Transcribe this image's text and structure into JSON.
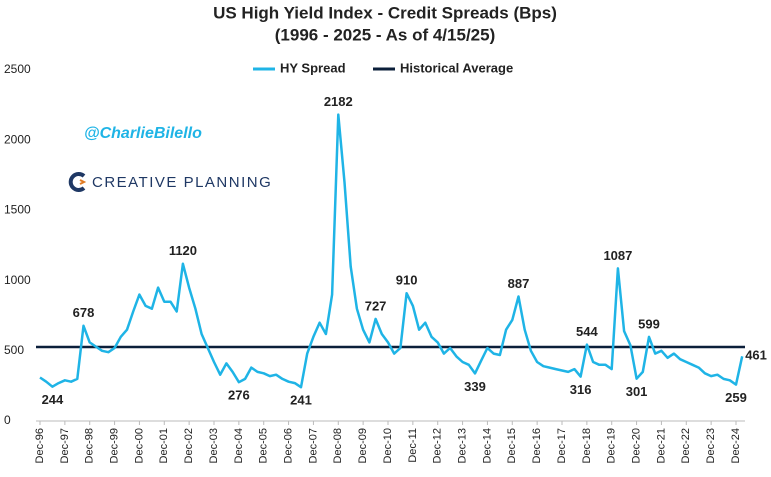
{
  "chart_data": {
    "type": "line",
    "title": "US High Yield Index - Credit Spreads (Bps)",
    "subtitle": "(1996 - 2025 - As of 4/15/25)",
    "watermark": "@CharlieBilello",
    "logo": "CREATIVE PLANNING",
    "categories": [
      "Dec-96",
      null,
      null,
      null,
      "Dec-97",
      null,
      null,
      null,
      "Dec-98",
      null,
      null,
      null,
      "Dec-99",
      null,
      null,
      null,
      "Dec-00",
      null,
      null,
      null,
      "Dec-01",
      null,
      null,
      null,
      "Dec-02",
      null,
      null,
      null,
      "Dec-03",
      null,
      null,
      null,
      "Dec-04",
      null,
      null,
      null,
      "Dec-05",
      null,
      null,
      null,
      "Dec-06",
      null,
      null,
      null,
      "Dec-07",
      null,
      null,
      null,
      "Dec-08",
      null,
      null,
      null,
      "Dec-09",
      null,
      null,
      null,
      "Dec-10",
      null,
      null,
      null,
      "Dec-11",
      null,
      null,
      null,
      "Dec-12",
      null,
      null,
      null,
      "Dec-13",
      null,
      null,
      null,
      "Dec-14",
      null,
      null,
      null,
      "Dec-15",
      null,
      null,
      null,
      "Dec-16",
      null,
      null,
      null,
      "Dec-17",
      null,
      null,
      null,
      "Dec-18",
      null,
      null,
      null,
      "Dec-19",
      null,
      null,
      null,
      "Dec-20",
      null,
      null,
      null,
      "Dec-21",
      null,
      null,
      null,
      "Dec-22",
      null,
      null,
      null,
      "Dec-23",
      null,
      null,
      null,
      "Dec-24",
      null
    ],
    "series": [
      {
        "name": "HY Spread",
        "color": "#1fb4e6",
        "values": [
          310,
          280,
          244,
          270,
          290,
          280,
          300,
          678,
          560,
          530,
          500,
          490,
          520,
          600,
          650,
          780,
          900,
          820,
          800,
          950,
          850,
          850,
          780,
          1120,
          950,
          800,
          620,
          520,
          420,
          330,
          410,
          350,
          276,
          300,
          380,
          350,
          340,
          320,
          330,
          300,
          280,
          270,
          241,
          480,
          600,
          700,
          620,
          900,
          2182,
          1700,
          1100,
          800,
          650,
          560,
          727,
          620,
          560,
          480,
          520,
          910,
          820,
          650,
          700,
          600,
          560,
          480,
          520,
          460,
          420,
          400,
          339,
          430,
          520,
          480,
          470,
          650,
          720,
          887,
          650,
          500,
          420,
          390,
          380,
          370,
          360,
          350,
          370,
          316,
          544,
          420,
          400,
          400,
          370,
          1087,
          640,
          540,
          301,
          350,
          599,
          480,
          500,
          450,
          480,
          440,
          420,
          400,
          380,
          340,
          320,
          330,
          300,
          290,
          259,
          461
        ],
        "value_labels": [
          null,
          null,
          "244",
          null,
          null,
          null,
          null,
          "678",
          null,
          null,
          null,
          null,
          null,
          null,
          null,
          null,
          null,
          null,
          null,
          null,
          null,
          null,
          null,
          "1120",
          null,
          null,
          null,
          null,
          null,
          null,
          null,
          null,
          "276",
          null,
          null,
          null,
          null,
          null,
          null,
          null,
          null,
          null,
          "241",
          null,
          null,
          null,
          null,
          null,
          "2182",
          null,
          null,
          null,
          null,
          null,
          "727",
          null,
          null,
          null,
          null,
          "910",
          null,
          null,
          null,
          null,
          null,
          null,
          null,
          null,
          null,
          null,
          "339",
          null,
          null,
          null,
          null,
          null,
          null,
          "887",
          null,
          null,
          null,
          null,
          null,
          null,
          null,
          null,
          null,
          "316",
          "544",
          null,
          null,
          null,
          null,
          "1087",
          null,
          null,
          "301",
          null,
          "599",
          null,
          null,
          null,
          null,
          null,
          null,
          null,
          null,
          null,
          null,
          null,
          null,
          null,
          "259",
          "461"
        ]
      }
    ],
    "reference_lines": [
      {
        "name": "Historical Average",
        "value": 527,
        "color": "#0b1f3a"
      }
    ],
    "ylim": [
      0,
      2500
    ],
    "yticks": [
      0,
      500,
      1000,
      1500,
      2000,
      2500
    ],
    "grid": false,
    "legend": "top"
  }
}
